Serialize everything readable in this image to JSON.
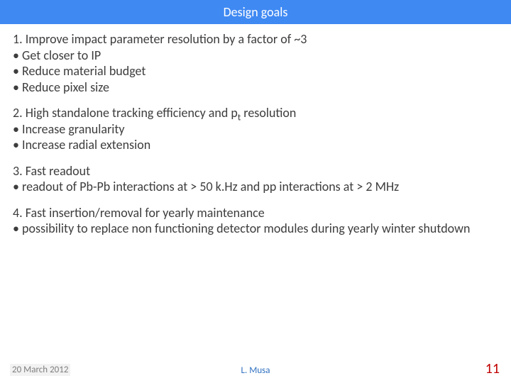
{
  "title": "Design goals",
  "title_bar_color": "#3f89f3",
  "title_text_color": "#ffffff",
  "sections": [
    {
      "heading": "1. Improve impact parameter resolution by a factor of ~3",
      "heading_color": "#3d3d3d",
      "bullets": [
        "• Get closer to IP",
        "• Reduce material budget",
        "• Reduce pixel size"
      ],
      "bullet_color": "#3d3d3d"
    },
    {
      "heading_pre": "2. High standalone tracking efficiency and p",
      "heading_sub": "t",
      "heading_post": " resolution",
      "heading_color": "#3d3d3d",
      "bullets": [
        "• Increase granularity",
        "• Increase radial extension"
      ],
      "bullet_color": "#3d3d3d"
    },
    {
      "heading": "3. Fast readout",
      "heading_color": "#3d3d3d",
      "bullets": [
        "• readout of Pb-Pb interactions at > 50 k.Hz and pp interactions at > 2 MHz"
      ],
      "bullet_color": "#3d3d3d"
    },
    {
      "heading": "4. Fast insertion/removal for yearly maintenance",
      "heading_color": "#3d3d3d",
      "bullets": [
        "• possibility to replace non functioning detector modules during yearly winter shutdown"
      ],
      "bullet_color": "#3d3d3d"
    }
  ],
  "footer": {
    "date": "20 March 2012",
    "date_color": "#7f7f7f",
    "date_bg": "#f2f2f2",
    "author": "L. Musa",
    "author_color": "#2f70c0",
    "page_number": "11",
    "page_color": "#c00000"
  }
}
